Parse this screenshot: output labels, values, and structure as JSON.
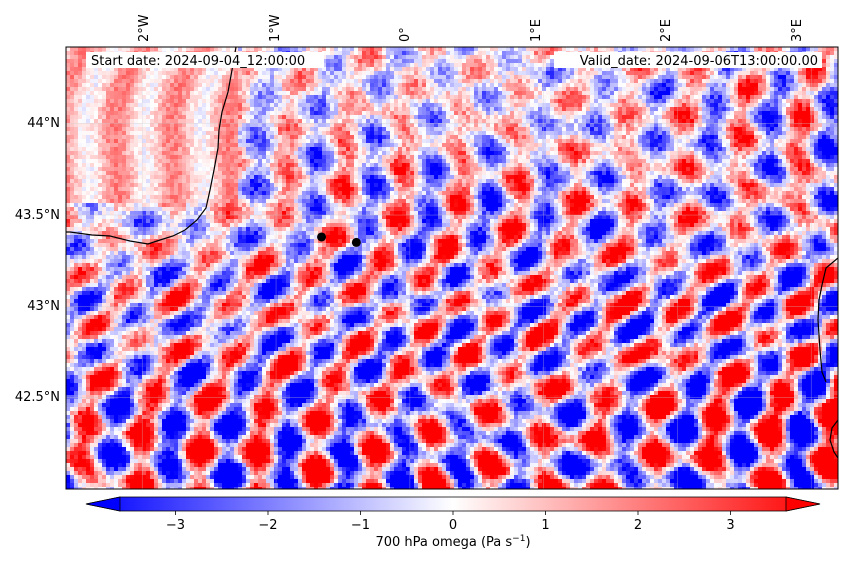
{
  "map": {
    "start_date_text": "Start date: 2024-09-04_12:00:00",
    "valid_date_text": "Valid_date: 2024-09-06T13:00:00.00",
    "lon_ticks": [
      "2°W",
      "1°W",
      "0°",
      "1°E",
      "2°E",
      "3°E"
    ],
    "lat_ticks": [
      "44°N",
      "43.5°N",
      "43°N",
      "42.5°N"
    ],
    "extent": {
      "lon_min": -2.57,
      "lon_max": 3.2,
      "lat_min": 42.0,
      "lat_max": 44.42
    },
    "markers": [
      {
        "name": "point-a",
        "lon": -0.66,
        "lat": 43.38
      },
      {
        "name": "point-b",
        "lon": -0.4,
        "lat": 43.35
      }
    ],
    "field_colors": {
      "positive": "#ff0000",
      "negative": "#0000ff",
      "neutral": "#ffffff"
    }
  },
  "colorbar": {
    "label_main": "700 hPa omega (Pa s",
    "label_exp": "−1",
    "label_close": ")",
    "ticks": [
      "−3",
      "−2",
      "−1",
      "0",
      "1",
      "2",
      "3"
    ],
    "tick_values": [
      -3,
      -2,
      -1,
      0,
      1,
      2,
      3
    ],
    "vmin": -3.6,
    "vmax": 3.6,
    "extend": "both"
  }
}
